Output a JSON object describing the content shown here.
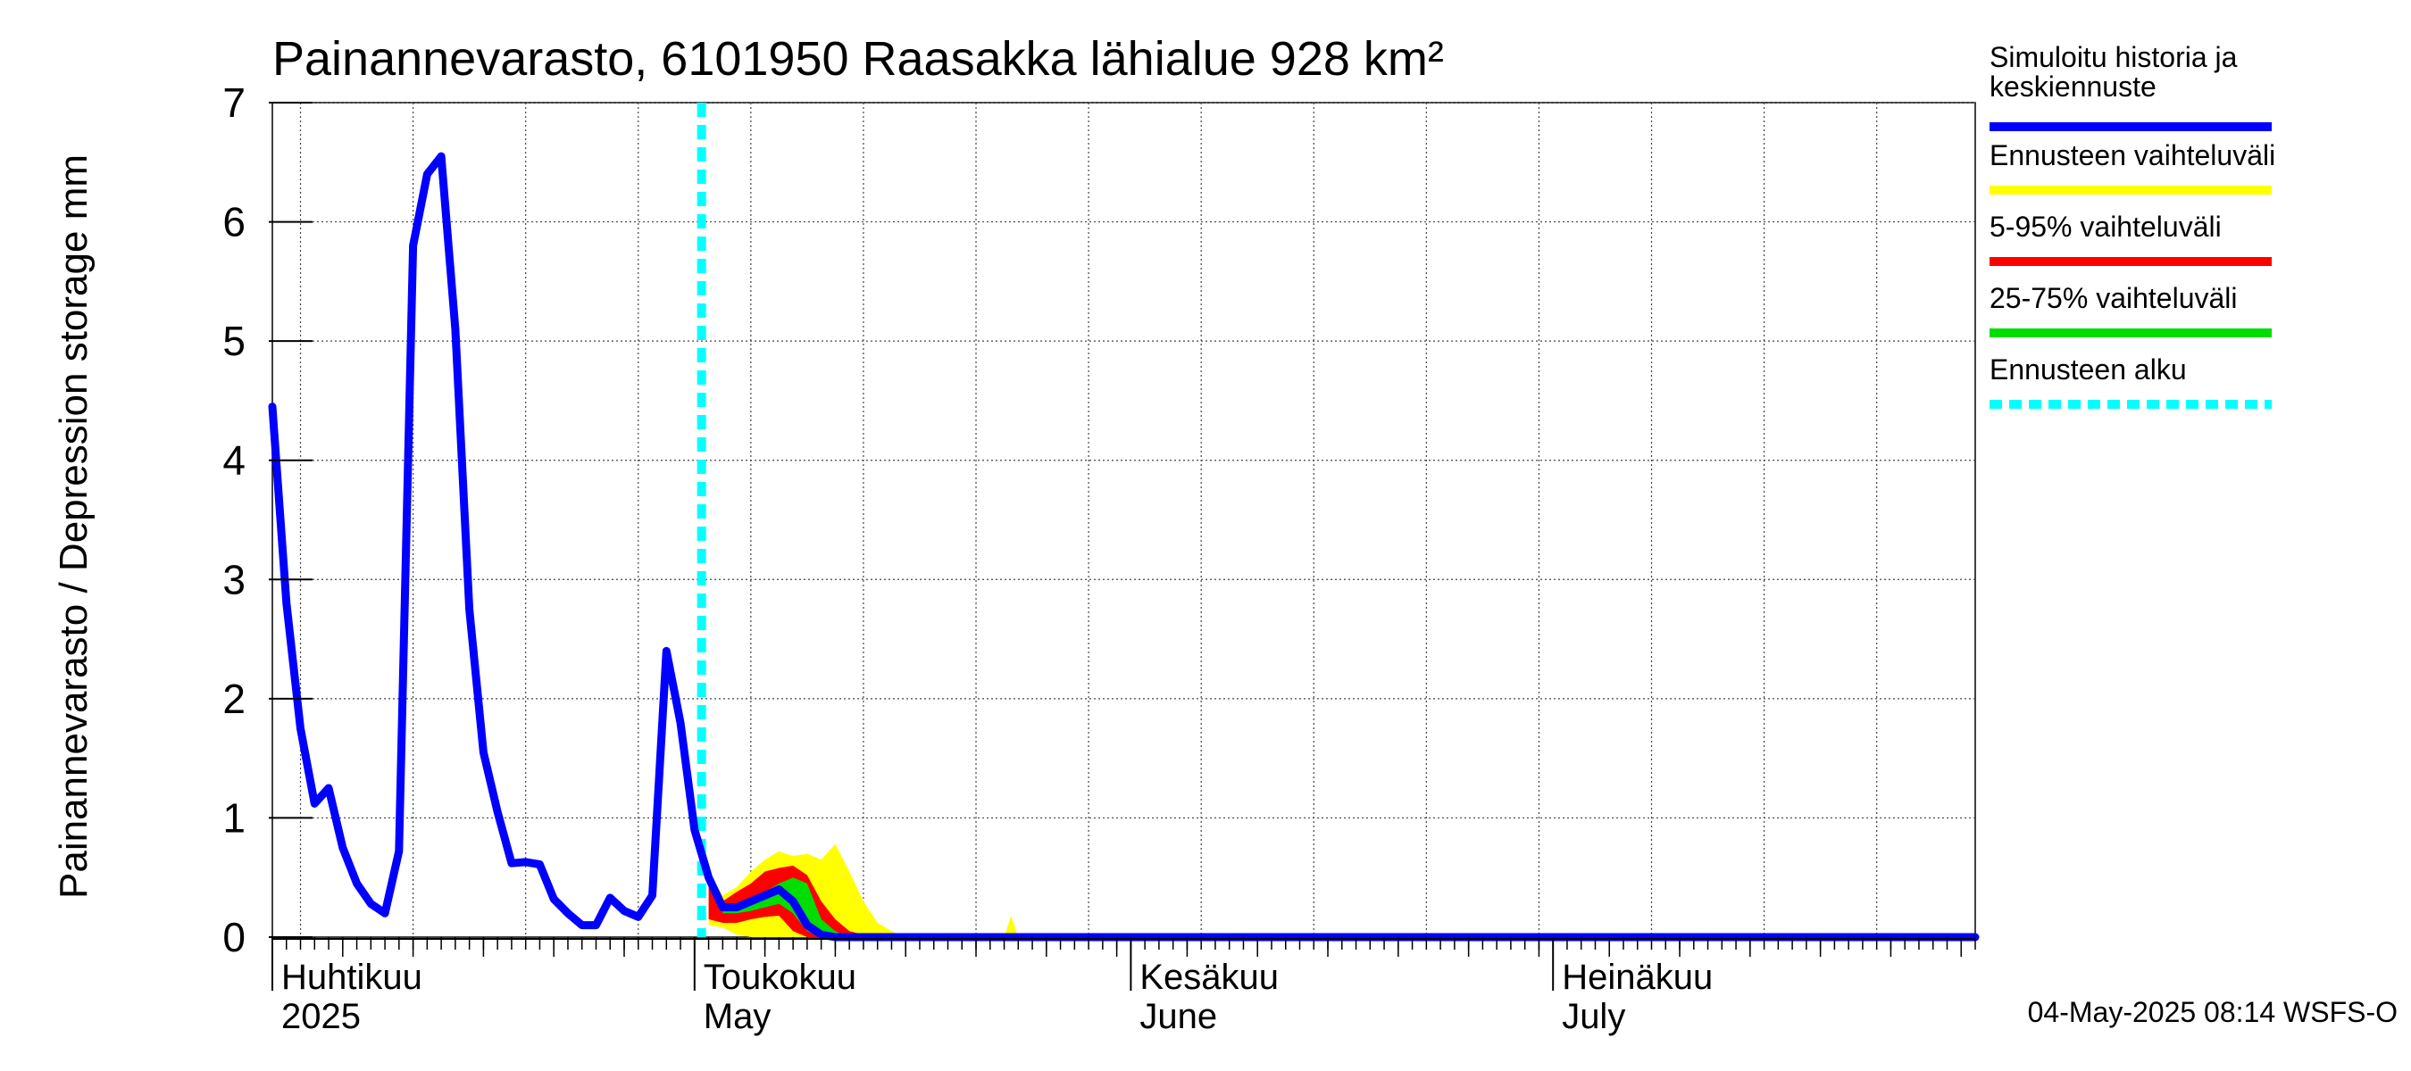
{
  "chart_data": {
    "type": "line",
    "title": "Painannevarasto, 6101950 Raasakka lähialue 928 km²",
    "ylabel": "Painannevarasto / Depression storage    mm",
    "ylim": [
      0,
      7
    ],
    "yticks": [
      0,
      1,
      2,
      3,
      4,
      5,
      6,
      7
    ],
    "x_domain_days": [
      0,
      121
    ],
    "grid": true,
    "month_labels": [
      {
        "fi": "Huhtikuu",
        "en": "2025",
        "day": 0
      },
      {
        "fi": "Toukokuu",
        "en": "May",
        "day": 30
      },
      {
        "fi": "Kesäkuu",
        "en": "June",
        "day": 61
      },
      {
        "fi": "Heinäkuu",
        "en": "July",
        "day": 91
      }
    ],
    "forecast_start_day": 30.5,
    "series": [
      {
        "name": "Simuloitu historia ja keskiennuste",
        "color": "#0000ff",
        "x": [
          0,
          1,
          2,
          3,
          4,
          5,
          6,
          7,
          8,
          9,
          10,
          11,
          12,
          13,
          14,
          15,
          16,
          17,
          18,
          19,
          20,
          21,
          22,
          23,
          24,
          25,
          26,
          27,
          28,
          29,
          30,
          31,
          32,
          33,
          34,
          35,
          36,
          37,
          38,
          39,
          40,
          41,
          121
        ],
        "values": [
          4.45,
          2.8,
          1.75,
          1.12,
          1.25,
          0.75,
          0.45,
          0.28,
          0.2,
          0.72,
          5.8,
          6.4,
          6.55,
          5.1,
          2.75,
          1.55,
          1.05,
          0.62,
          0.63,
          0.61,
          0.32,
          0.2,
          0.1,
          0.1,
          0.33,
          0.22,
          0.17,
          0.35,
          2.4,
          1.8,
          0.9,
          0.5,
          0.25,
          0.25,
          0.3,
          0.35,
          0.4,
          0.3,
          0.1,
          0.02,
          0.0,
          0.0,
          0.0
        ]
      }
    ],
    "bands": [
      {
        "name": "Ennusteen vaihteluväli",
        "color": "#ffff00",
        "x": [
          31,
          32,
          33,
          34,
          35,
          36,
          37,
          38,
          39,
          40,
          41,
          42,
          43,
          44,
          45,
          46,
          47,
          48,
          49,
          50,
          51,
          52,
          121
        ],
        "upper": [
          0.55,
          0.35,
          0.42,
          0.55,
          0.65,
          0.72,
          0.68,
          0.7,
          0.65,
          0.78,
          0.55,
          0.3,
          0.12,
          0.05,
          0.0,
          0.0,
          0.0,
          0.0,
          0.0,
          0.0,
          0.0,
          0.0,
          0.0
        ],
        "lower": [
          0.1,
          0.08,
          0.02,
          0.0,
          0.0,
          0.0,
          0.0,
          0.0,
          0.0,
          0.0,
          0.0,
          0.0,
          0.0,
          0.0,
          0.0,
          0.0,
          0.0,
          0.0,
          0.0,
          0.0,
          0.0,
          0.0,
          0.0
        ]
      },
      {
        "name": "5-95% vaihteluväli",
        "color": "#ff0000",
        "x": [
          31,
          32,
          33,
          34,
          35,
          36,
          37,
          38,
          39,
          40,
          41,
          42,
          43,
          44,
          121
        ],
        "upper": [
          0.45,
          0.3,
          0.38,
          0.45,
          0.55,
          0.58,
          0.6,
          0.52,
          0.3,
          0.15,
          0.05,
          0.02,
          0.0,
          0.0,
          0.0
        ],
        "lower": [
          0.15,
          0.12,
          0.12,
          0.15,
          0.17,
          0.18,
          0.05,
          0.0,
          0.0,
          0.0,
          0.0,
          0.0,
          0.0,
          0.0,
          0.0
        ]
      },
      {
        "name": "25-75% vaihteluväli",
        "color": "#00dd00",
        "x": [
          32,
          33,
          34,
          35,
          36,
          37,
          38,
          39,
          40,
          41,
          121
        ],
        "upper": [
          0.25,
          0.27,
          0.32,
          0.38,
          0.45,
          0.5,
          0.45,
          0.15,
          0.05,
          0.0,
          0.0
        ],
        "lower": [
          0.2,
          0.2,
          0.22,
          0.25,
          0.28,
          0.2,
          0.05,
          0.0,
          0.0,
          0.0,
          0.0
        ]
      },
      {
        "name": "Ennusteen vaihteluväli (late)",
        "color": "#ffff00",
        "x": [
          52,
          52.5,
          53,
          121
        ],
        "upper": [
          0.0,
          0.18,
          0.0,
          0.0
        ],
        "lower": [
          0.0,
          0.0,
          0.0,
          0.0
        ]
      }
    ],
    "legend": {
      "placement": "right",
      "entries": [
        {
          "label_1": "Simuloitu historia ja",
          "label_2": "keskiennuste",
          "color": "#0000ff",
          "style": "solid"
        },
        {
          "label_1": "Ennusteen vaihteluväli",
          "label_2": "",
          "color": "#ffff00",
          "style": "solid"
        },
        {
          "label_1": "5-95% vaihteluväli",
          "label_2": "",
          "color": "#ff0000",
          "style": "solid"
        },
        {
          "label_1": "25-75% vaihteluväli",
          "label_2": "",
          "color": "#00dd00",
          "style": "solid"
        },
        {
          "label_1": "Ennusteen alku",
          "label_2": "",
          "color": "#00ffff",
          "style": "dashed"
        }
      ]
    },
    "footer": "04-May-2025 08:14 WSFS-O"
  }
}
